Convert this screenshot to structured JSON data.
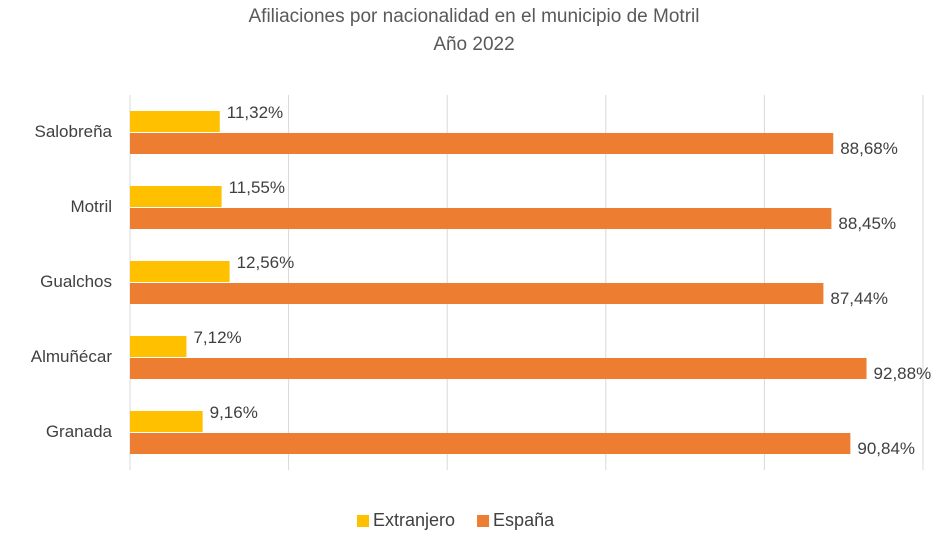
{
  "chart_data": {
    "type": "bar",
    "orientation": "horizontal",
    "title": "Afiliaciones por nacionalidad en el municipio de Motril",
    "subtitle": "Año 2022",
    "categories": [
      "Salobreña",
      "Motril",
      "Gualchos",
      "Almuñécar",
      "Granada"
    ],
    "series": [
      {
        "name": "Extranjero",
        "color": "#FFC000",
        "values": [
          11.32,
          11.55,
          12.56,
          7.12,
          9.16
        ],
        "value_labels": [
          "11,32%",
          "11,55%",
          "12,56%",
          "7,12%",
          "9,16%"
        ]
      },
      {
        "name": "España",
        "color": "#ED7D31",
        "values": [
          88.68,
          88.45,
          87.44,
          92.88,
          90.84
        ],
        "value_labels": [
          "88,68%",
          "88,45%",
          "87,44%",
          "92,88%",
          "90,84%"
        ]
      }
    ],
    "xlim": [
      0,
      100
    ],
    "xticks": [
      0,
      20,
      40,
      60,
      80,
      100
    ],
    "grid": true,
    "legend": "bottom"
  }
}
